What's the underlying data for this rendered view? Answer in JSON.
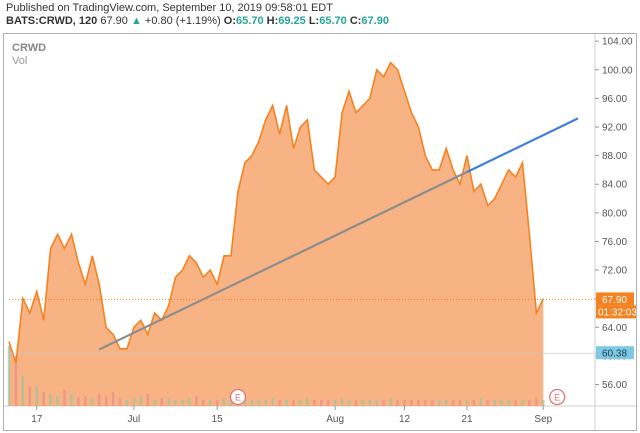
{
  "header": {
    "published": "Published on TradingView.com, September 10, 2019 09:58:01 EDT",
    "symbol_line": "BATS:CRWD, 120",
    "price": "67.90",
    "change_arrow": "▲",
    "change": "+0.80 (+1.19%)",
    "o_label": "O:",
    "o_value": "65.70",
    "h_label": "H:",
    "h_value": "69.25",
    "l_label": "L:",
    "l_value": "65.70",
    "c_label": "C:",
    "c_value": "67.90"
  },
  "chart_labels": {
    "symbol": "CRWD",
    "volume": "Vol"
  },
  "badges": {
    "last_price": "67.90",
    "countdown": "01:32:03",
    "level": "60.38",
    "event_marker": "E"
  },
  "colors": {
    "area_fill": "#f7a670",
    "area_line": "#f58220",
    "trendline": "#8d8d8d",
    "trendline_ext": "#3f7fd8",
    "last_price_badge": "#f58220",
    "level_badge": "#7ec8e3",
    "volume_up": "#9bc59d",
    "volume_down": "#e88b8b"
  },
  "chart_data": {
    "type": "area",
    "title": "",
    "ylim": [
      53,
      105
    ],
    "y_ticks": [
      "104.00",
      "100.00",
      "96.00",
      "92.00",
      "88.00",
      "84.00",
      "80.00",
      "76.00",
      "72.00",
      "68.00",
      "64.00",
      "60.00",
      "56.00"
    ],
    "x_tick_labels": [
      "17",
      "Jul",
      "15",
      "Aug",
      "12",
      "21",
      "Sep"
    ],
    "x_tick_index": [
      4,
      18,
      30,
      47,
      57,
      66,
      77
    ],
    "event_index": [
      33,
      79
    ],
    "series": [
      {
        "values": [
          62,
          59,
          68,
          66,
          69,
          65,
          75,
          77,
          75,
          77,
          73,
          70,
          74,
          70,
          64,
          63,
          61,
          61,
          64,
          65,
          63,
          66,
          65,
          67,
          71,
          72,
          74,
          73,
          71,
          72,
          70,
          74,
          74,
          83,
          87,
          88,
          90,
          93,
          95,
          91,
          95,
          89,
          92,
          93,
          86,
          85,
          84,
          85,
          94,
          97,
          94,
          95,
          96,
          100,
          99,
          101,
          100,
          97,
          94,
          92,
          88,
          86,
          86,
          89,
          86,
          84,
          88,
          83,
          84,
          81,
          82,
          84,
          86,
          85,
          87,
          77,
          66,
          68
        ]
      }
    ],
    "trendline": {
      "start_index": 13,
      "start_value": 60.9,
      "end_index": 82,
      "end_value": 93.2
    },
    "volume": [
      3,
      2.5,
      1.5,
      1,
      1,
      0.7,
      0.6,
      0.5,
      0.8,
      0.6,
      0.4,
      0.5,
      0.4,
      0.6,
      0.5,
      0.7,
      0.4,
      0.3,
      0.4,
      0.5,
      0.6,
      0.3,
      0.4,
      0.4,
      0.3,
      0.3,
      0.4,
      0.5,
      0.3,
      0.3,
      0.3,
      0.4,
      0.3,
      0.4,
      0.3,
      0.3,
      0.3,
      0.3,
      0.4,
      0.3,
      0.3,
      0.3,
      0.3,
      0.4,
      0.3,
      0.3,
      0.3,
      0.3,
      0.4,
      0.3,
      0.3,
      0.3,
      0.3,
      0.3,
      0.3,
      0.4,
      0.3,
      0.3,
      0.3,
      0.3,
      0.3,
      0.3,
      0.3,
      0.3,
      0.3,
      0.3,
      0.3,
      0.3,
      0.4,
      0.3,
      0.3,
      0.3,
      0.3,
      0.3,
      0.3,
      0.3,
      0.4,
      0.3
    ],
    "last_price": 67.9,
    "level_line": 60.38
  }
}
